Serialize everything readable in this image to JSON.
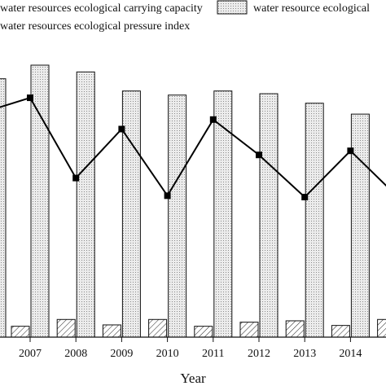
{
  "chart_data": {
    "type": "bar",
    "categories": [
      "2007",
      "2008",
      "2009",
      "2010",
      "2011",
      "2012",
      "2013",
      "2014"
    ],
    "xlabel": "Year",
    "ylabel": "",
    "ylim": [
      0,
      100
    ],
    "grid": false,
    "legend_position": "top",
    "series": [
      {
        "name": "water resources ecological carrying capacity",
        "kind": "bar",
        "pattern": "hatched",
        "values": [
          4,
          6.5,
          4.5,
          6.5,
          4,
          5.5,
          6,
          4.3
        ]
      },
      {
        "name": "water resource ecological",
        "kind": "bar",
        "pattern": "dotted-gray",
        "values": [
          100,
          97.5,
          90.5,
          89,
          90.5,
          89.5,
          86,
          82
        ]
      },
      {
        "name": "water resources ecological pressure index",
        "kind": "line",
        "marker": "square",
        "values": [
          88,
          58.5,
          76.5,
          52,
          80,
          67,
          51.5,
          68.5
        ]
      }
    ],
    "partial_edges": {
      "left": {
        "hatched": 4,
        "dotted": 95,
        "line": 84
      },
      "right": {
        "hatched": 6.5,
        "line": 54
      }
    }
  },
  "colors": {
    "bar_fill": "#ececec",
    "bar_stroke": "#111111",
    "line": "#000000"
  }
}
